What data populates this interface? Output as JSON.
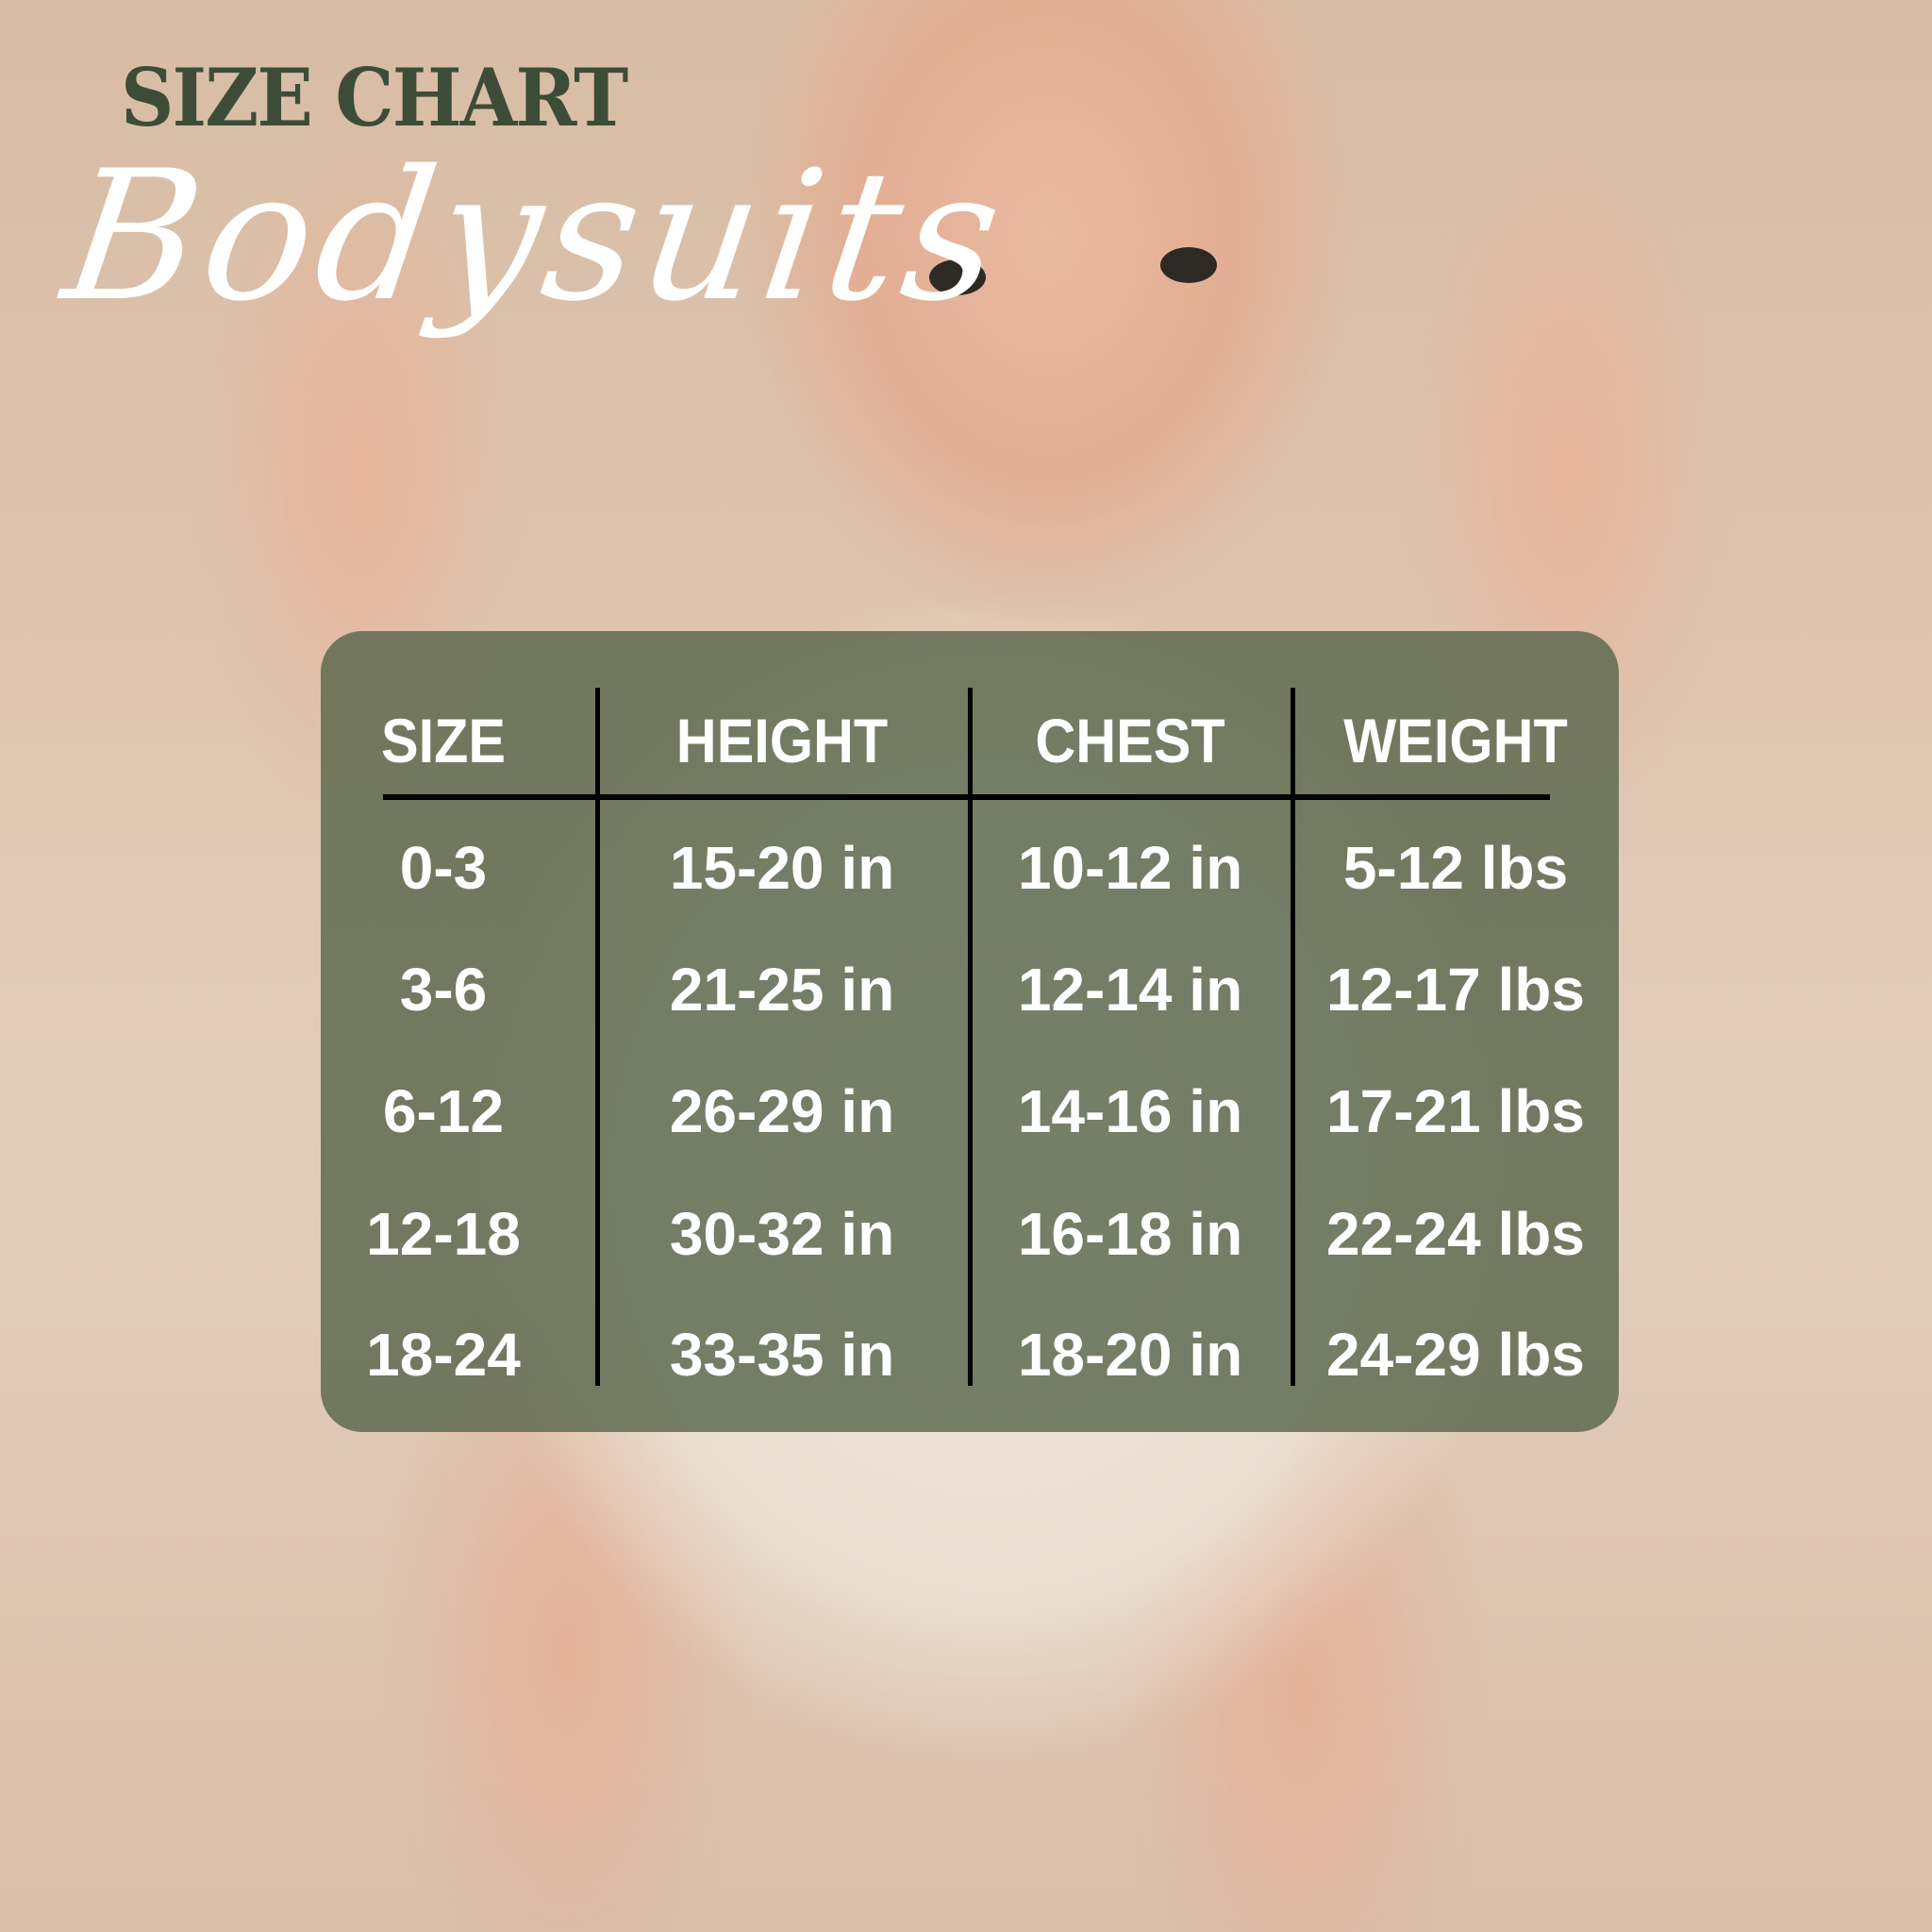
{
  "header": {
    "title": "SIZE CHART",
    "subtitle": "Bodysuits"
  },
  "colors": {
    "title": "#3d4c36",
    "panel": "#56644a",
    "text": "#ffffff"
  },
  "table": {
    "columns": [
      "SIZE",
      "HEIGHT",
      "CHEST",
      "WEIGHT"
    ],
    "rows": [
      [
        "0-3",
        "15-20 in",
        "10-12 in",
        "5-12 lbs"
      ],
      [
        "3-6",
        "21-25 in",
        "12-14 in",
        "12-17 lbs"
      ],
      [
        "6-12",
        "26-29 in",
        "14-16 in",
        "17-21 lbs"
      ],
      [
        "12-18",
        "30-32 in",
        "16-18 in",
        "22-24 lbs"
      ],
      [
        "18-24",
        "33-35 in",
        "18-20 in",
        "24-29 lbs"
      ]
    ]
  }
}
